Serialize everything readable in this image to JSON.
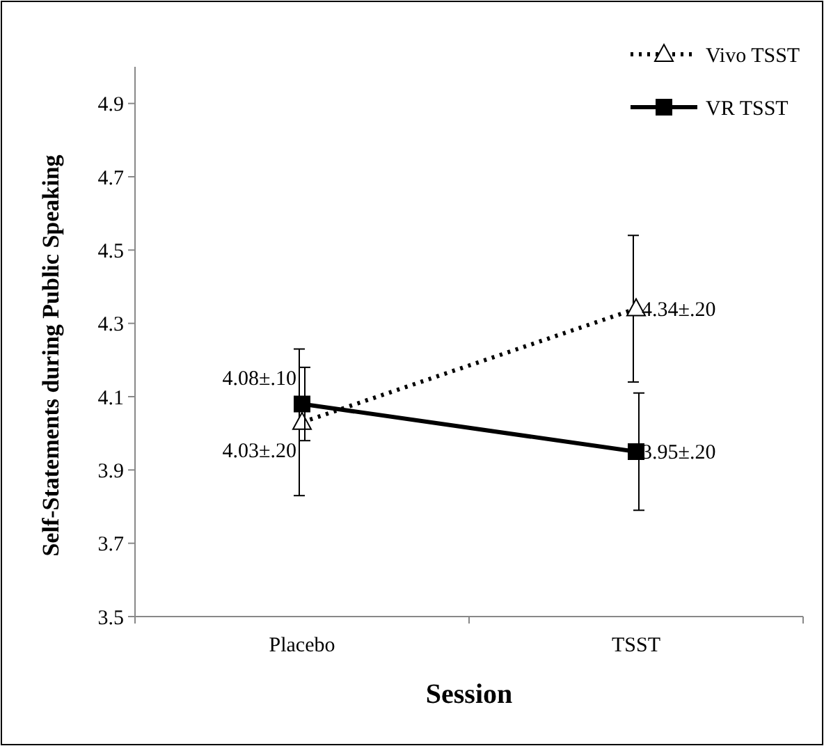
{
  "chart_data": {
    "type": "line",
    "xlabel": "Session",
    "ylabel": "Self-Statements during Public Speaking",
    "categories": [
      "Placebo",
      "TSST"
    ],
    "ylim": [
      3.5,
      5.0
    ],
    "yticks": [
      3.5,
      3.7,
      3.9,
      4.1,
      4.3,
      4.5,
      4.7,
      4.9
    ],
    "grid": false,
    "legend": "top right",
    "series": [
      {
        "name": "Vivo TSST",
        "color": "#000000",
        "values": [
          4.03,
          4.34
        ],
        "errors": [
          0.2,
          0.2
        ],
        "value_labels": [
          "4.03±.20",
          "4.34±.20"
        ],
        "marker": "triangle",
        "line_style": "dotted"
      },
      {
        "name": "VR TSST",
        "color": "#000000",
        "values": [
          4.08,
          3.95
        ],
        "errors": [
          0.1,
          0.16
        ],
        "value_labels": [
          "4.08±.10",
          "3.95±.20"
        ],
        "marker": "square",
        "line_style": "solid"
      }
    ]
  }
}
